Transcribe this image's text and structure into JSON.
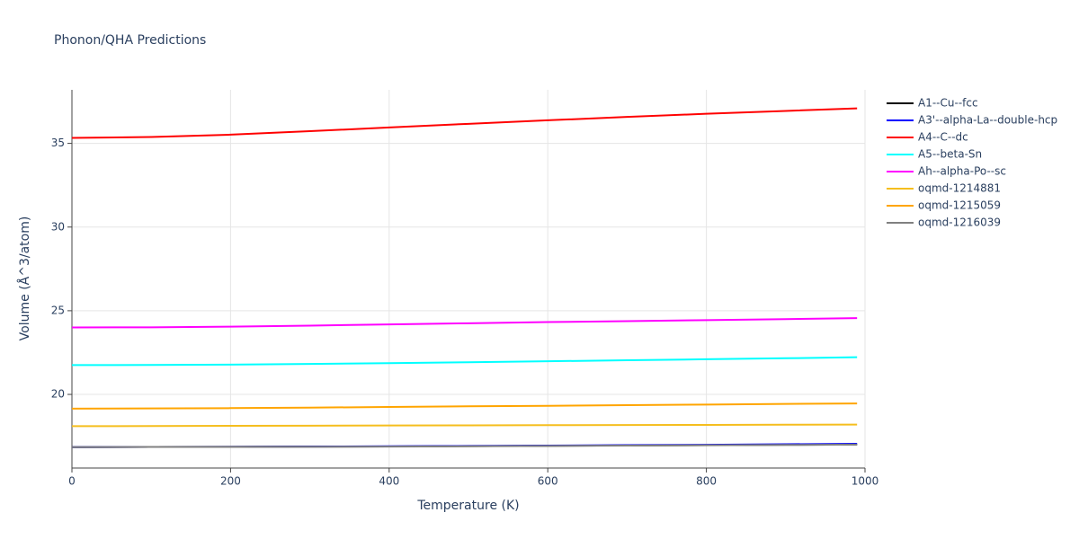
{
  "chart_data": {
    "type": "line",
    "title": "Phonon/QHA Predictions",
    "x_label": "Temperature (K)",
    "y_label": "Volume (Å^3/atom)",
    "x": [
      0,
      100,
      200,
      300,
      400,
      500,
      600,
      700,
      800,
      900,
      990
    ],
    "series": [
      {
        "name": "A1--Cu--fcc",
        "color": "#000000",
        "values": [
          16.85,
          16.86,
          16.87,
          16.88,
          16.89,
          16.91,
          16.93,
          16.95,
          16.97,
          16.99,
          17.0
        ]
      },
      {
        "name": "A3'--alpha-La--double-hcp",
        "color": "#0000ff",
        "values": [
          16.85,
          16.86,
          16.87,
          16.88,
          16.9,
          16.92,
          16.94,
          16.97,
          16.99,
          17.02,
          17.05
        ]
      },
      {
        "name": "A4--C--dc",
        "color": "#ff0000",
        "values": [
          35.33,
          35.38,
          35.52,
          35.73,
          35.95,
          36.17,
          36.38,
          36.58,
          36.77,
          36.94,
          37.09
        ]
      },
      {
        "name": "A5--beta-Sn",
        "color": "#00ffff",
        "values": [
          21.75,
          21.76,
          21.78,
          21.82,
          21.87,
          21.92,
          21.98,
          22.04,
          22.1,
          22.16,
          22.22
        ]
      },
      {
        "name": "Ah--alpha-Po--sc",
        "color": "#ff00ff",
        "values": [
          24.0,
          24.01,
          24.05,
          24.11,
          24.18,
          24.25,
          24.32,
          24.38,
          24.44,
          24.5,
          24.56
        ]
      },
      {
        "name": "oqmd-1214881",
        "color": "#f5be1e",
        "values": [
          18.1,
          18.11,
          18.12,
          18.13,
          18.14,
          18.15,
          18.16,
          18.17,
          18.18,
          18.19,
          18.2
        ]
      },
      {
        "name": "oqmd-1215059",
        "color": "#ffa500",
        "values": [
          19.15,
          19.16,
          19.18,
          19.21,
          19.25,
          19.29,
          19.32,
          19.36,
          19.39,
          19.43,
          19.46
        ]
      },
      {
        "name": "oqmd-1216039",
        "color": "#808080",
        "values": [
          16.85,
          16.86,
          16.86,
          16.87,
          16.88,
          16.9,
          16.92,
          16.94,
          16.96,
          16.98,
          17.0
        ]
      }
    ],
    "xlim": [
      0,
      1000
    ],
    "xticks": [
      0,
      200,
      400,
      600,
      800,
      1000
    ],
    "ylim": [
      15.6,
      38.2
    ],
    "yticks": [
      20,
      25,
      30,
      35
    ],
    "grid": true
  }
}
